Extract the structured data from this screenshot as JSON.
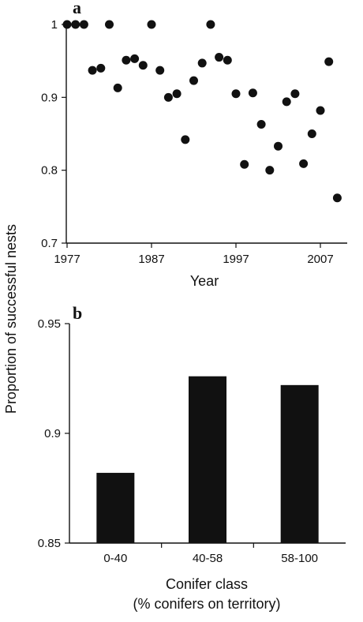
{
  "figure": {
    "y_label": "Proportion of successful nests"
  },
  "chart_data": [
    {
      "type": "scatter",
      "panel": "a",
      "xlabel": "Year",
      "ylabel": "Proportion of successful nests",
      "xlim": [
        1977,
        2010
      ],
      "ylim": [
        0.7,
        1.0
      ],
      "x_ticks": [
        1977,
        1987,
        1997,
        2007
      ],
      "y_ticks": [
        0.7,
        0.8,
        0.9,
        1.0
      ],
      "y_tick_labels": [
        "0.7",
        "0.8",
        "0.9",
        "1"
      ],
      "grid": false,
      "points": [
        {
          "x": 1977,
          "y": 1.0
        },
        {
          "x": 1978,
          "y": 1.0
        },
        {
          "x": 1979,
          "y": 1.0
        },
        {
          "x": 1980,
          "y": 0.937
        },
        {
          "x": 1981,
          "y": 0.94
        },
        {
          "x": 1982,
          "y": 1.0
        },
        {
          "x": 1983,
          "y": 0.913
        },
        {
          "x": 1984,
          "y": 0.951
        },
        {
          "x": 1985,
          "y": 0.953
        },
        {
          "x": 1986,
          "y": 0.944
        },
        {
          "x": 1987,
          "y": 1.0
        },
        {
          "x": 1988,
          "y": 0.937
        },
        {
          "x": 1989,
          "y": 0.9
        },
        {
          "x": 1990,
          "y": 0.905
        },
        {
          "x": 1991,
          "y": 0.842
        },
        {
          "x": 1992,
          "y": 0.923
        },
        {
          "x": 1993,
          "y": 0.947
        },
        {
          "x": 1994,
          "y": 1.0
        },
        {
          "x": 1995,
          "y": 0.955
        },
        {
          "x": 1996,
          "y": 0.951
        },
        {
          "x": 1997,
          "y": 0.905
        },
        {
          "x": 1998,
          "y": 0.808
        },
        {
          "x": 1999,
          "y": 0.906
        },
        {
          "x": 2000,
          "y": 0.863
        },
        {
          "x": 2001,
          "y": 0.8
        },
        {
          "x": 2002,
          "y": 0.833
        },
        {
          "x": 2003,
          "y": 0.894
        },
        {
          "x": 2004,
          "y": 0.905
        },
        {
          "x": 2005,
          "y": 0.809
        },
        {
          "x": 2006,
          "y": 0.85
        },
        {
          "x": 2007,
          "y": 0.882
        },
        {
          "x": 2008,
          "y": 0.949
        },
        {
          "x": 2009,
          "y": 0.762
        }
      ]
    },
    {
      "type": "bar",
      "panel": "b",
      "xlabel_line1": "Conifer class",
      "xlabel_line2": "(% conifers on territory)",
      "ylabel": "Proportion of successful nests",
      "categories": [
        "0-40",
        "40-58",
        "58-100"
      ],
      "values": [
        0.882,
        0.926,
        0.922
      ],
      "ylim": [
        0.85,
        0.95
      ],
      "y_ticks": [
        0.85,
        0.9,
        0.95
      ],
      "y_tick_labels": [
        "0.85",
        "0.9",
        "0.95"
      ],
      "bar_color": "#111111",
      "grid": false
    }
  ]
}
